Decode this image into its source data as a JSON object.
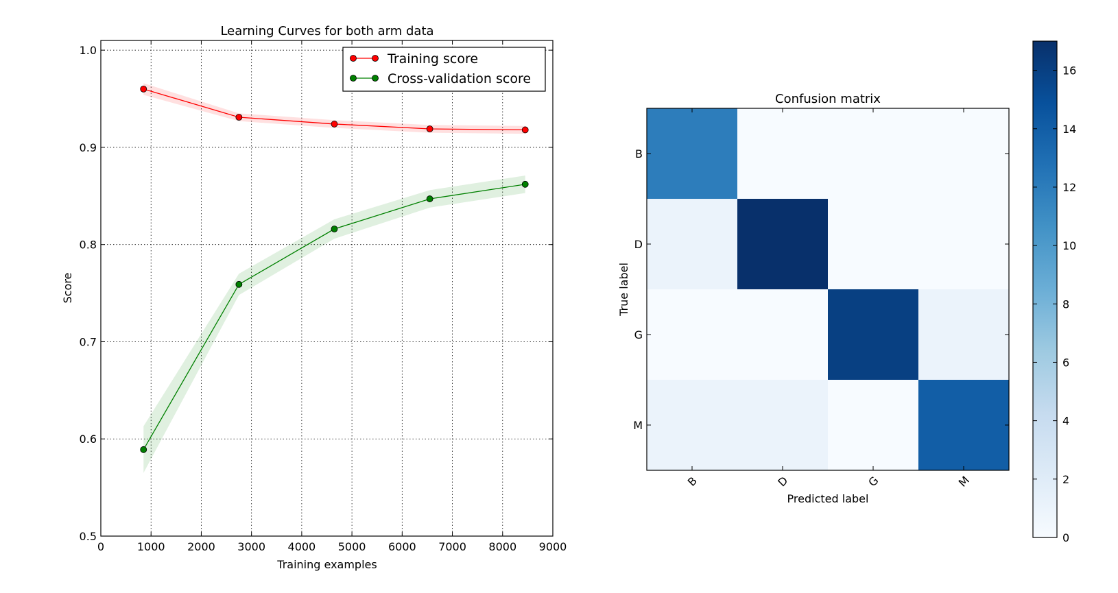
{
  "chart_data": [
    {
      "type": "line",
      "title": "Learning Curves for both arm data",
      "xlabel": "Training examples",
      "ylabel": "Score",
      "xlim": [
        0,
        9000
      ],
      "ylim": [
        0.5,
        1.01
      ],
      "xticks": [
        0,
        1000,
        2000,
        3000,
        4000,
        5000,
        6000,
        7000,
        8000,
        9000
      ],
      "yticks": [
        0.5,
        0.6,
        0.7,
        0.8,
        0.9,
        1.0
      ],
      "grid": true,
      "legend": "top-right",
      "x": [
        850,
        2750,
        4650,
        6550,
        8450
      ],
      "series": [
        {
          "name": "Training score",
          "color": "#ff0000",
          "values": [
            0.96,
            0.931,
            0.924,
            0.919,
            0.918
          ],
          "band": [
            0.006,
            0.004,
            0.004,
            0.004,
            0.004
          ]
        },
        {
          "name": "Cross-validation score",
          "color": "#008000",
          "values": [
            0.589,
            0.759,
            0.816,
            0.847,
            0.862
          ],
          "band": [
            0.024,
            0.011,
            0.01,
            0.009,
            0.009
          ]
        }
      ]
    },
    {
      "type": "heatmap",
      "title": "Confusion matrix",
      "xlabel": "Predicted label",
      "ylabel": "True label",
      "x_categories": [
        "B",
        "D",
        "G",
        "M"
      ],
      "y_categories": [
        "B",
        "D",
        "G",
        "M"
      ],
      "values": [
        [
          12,
          0,
          0,
          0
        ],
        [
          1,
          17,
          0,
          0
        ],
        [
          0,
          0,
          16,
          1
        ],
        [
          1,
          1,
          0,
          14
        ]
      ],
      "colormap": "Blues",
      "colorbar": {
        "min": 0,
        "max": 17,
        "ticks": [
          0,
          2,
          4,
          6,
          8,
          10,
          12,
          14,
          16
        ]
      }
    }
  ]
}
